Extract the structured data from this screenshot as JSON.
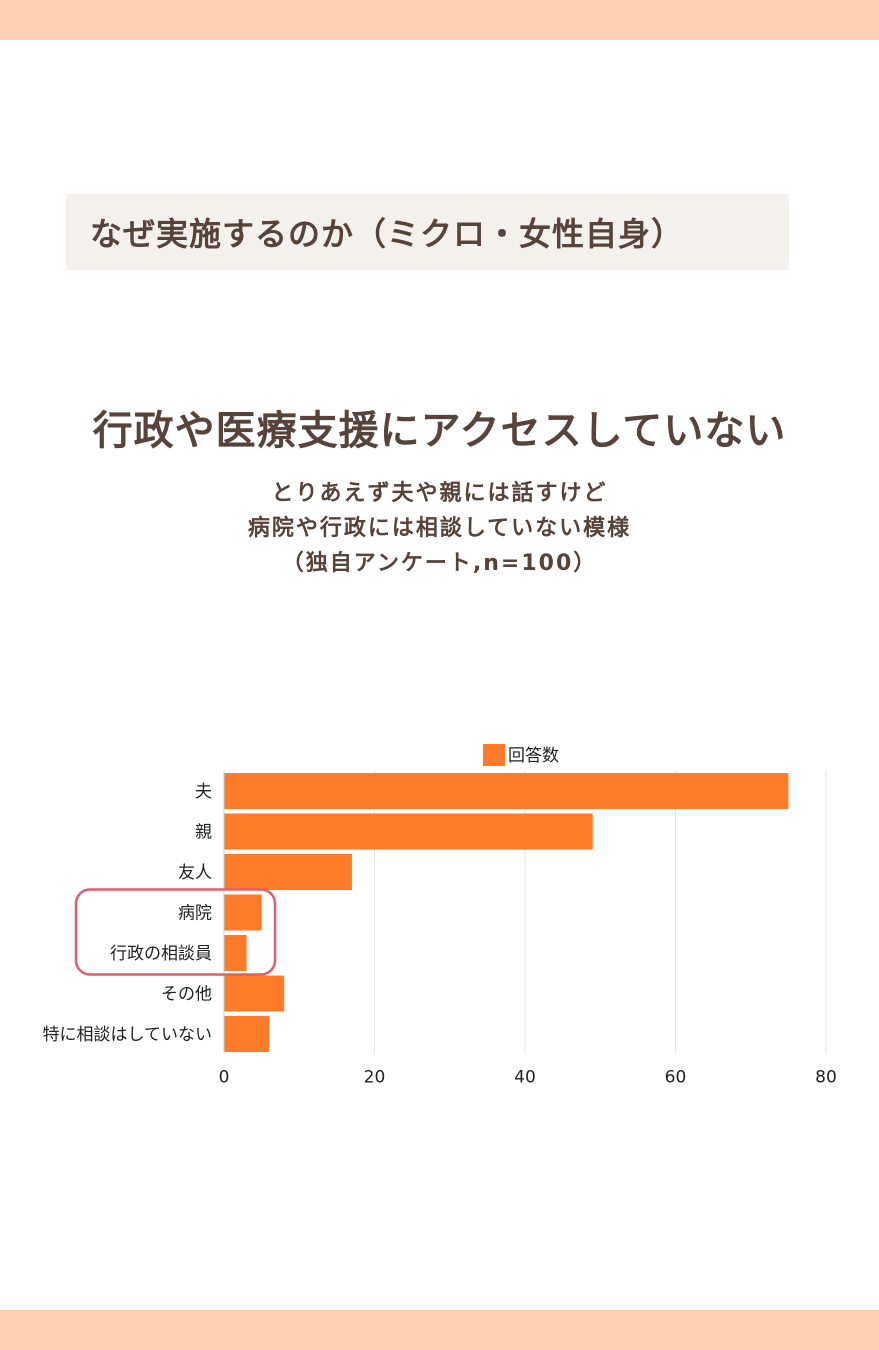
{
  "colors": {
    "band": "#fcd0b1",
    "section_bg": "#f4f1ec",
    "text": "#57433a",
    "bar": "#ff7b29",
    "highlight": "#e06068",
    "grid": "#e6e6e6"
  },
  "section_title": "なぜ実施するのか（ミクロ・女性自身）",
  "headline": "行政や医療支援にアクセスしていない",
  "subtitle": {
    "line1": "とりあえず夫や親には話すけど",
    "line2": "病院や行政には相談していない模様",
    "line3": "（独自アンケート,n=100）"
  },
  "chart_data": {
    "type": "bar",
    "orientation": "horizontal",
    "title": "",
    "xlabel": "",
    "ylabel": "",
    "xlim": [
      0,
      80
    ],
    "xticks": [
      0,
      20,
      40,
      60,
      80
    ],
    "grid": true,
    "legend": "top-center",
    "series": [
      {
        "name": "回答数",
        "values": [
          75,
          49,
          17,
          5,
          3,
          8,
          6
        ]
      }
    ],
    "categories": [
      "夫",
      "親",
      "友人",
      "病院",
      "行政の相談員",
      "その他",
      "特に相談はしていない"
    ],
    "highlight": {
      "categories": [
        "病院",
        "行政の相談員"
      ]
    }
  }
}
